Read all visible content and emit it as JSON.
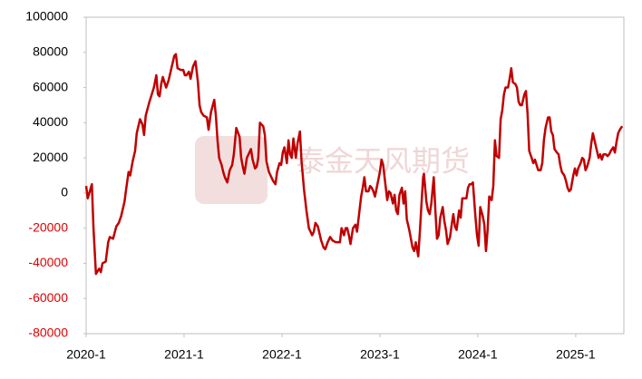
{
  "chart_data": {
    "type": "line",
    "watermark": "泰金天风期货",
    "color": "#c00000",
    "negative_tick_color": "#e00000",
    "x_unit": "months",
    "xlim": [
      0,
      65.9
    ],
    "xticks": [
      {
        "value": 0,
        "label": "2020-1"
      },
      {
        "value": 12,
        "label": "2021-1"
      },
      {
        "value": 24,
        "label": "2022-1"
      },
      {
        "value": 36,
        "label": "2023-1"
      },
      {
        "value": 48,
        "label": "2024-1"
      },
      {
        "value": 60,
        "label": "2025-1"
      }
    ],
    "ylim": [
      -80000,
      100000
    ],
    "yticks": [
      -80000,
      -60000,
      -40000,
      -20000,
      0,
      20000,
      40000,
      60000,
      80000,
      100000
    ],
    "x": [
      0,
      0.2,
      0.7,
      0.9,
      1.2,
      1.6,
      1.8,
      2,
      2.4,
      2.7,
      2.9,
      3.3,
      3.7,
      4,
      4.3,
      4.7,
      4.9,
      5.2,
      5.4,
      5.7,
      6,
      6.2,
      6.6,
      6.9,
      7.1,
      7.3,
      7.7,
      7.9,
      8.3,
      8.6,
      8.8,
      9,
      9.2,
      9.4,
      9.8,
      10.1,
      10.4,
      10.8,
      11,
      11.2,
      11.6,
      11.9,
      12.1,
      12.3,
      12.6,
      12.8,
      13.1,
      13.4,
      13.7,
      13.9,
      14.1,
      14.4,
      14.8,
      15,
      15.3,
      15.7,
      15.9,
      16.1,
      16.3,
      16.6,
      16.8,
      17,
      17.3,
      17.6,
      17.9,
      18.1,
      18.4,
      18.8,
      19,
      19.2,
      19.4,
      19.7,
      19.9,
      20.2,
      20.4,
      20.7,
      20.9,
      21.1,
      21.3,
      21.7,
      21.9,
      22.1,
      22.4,
      22.7,
      22.9,
      23.2,
      23.4,
      23.7,
      23.9,
      24.1,
      24.3,
      24.6,
      24.8,
      25,
      25.2,
      25.4,
      25.7,
      25.9,
      26.2,
      26.4,
      26.7,
      27,
      27.3,
      27.7,
      27.9,
      28.1,
      28.4,
      28.8,
      29.1,
      29.3,
      29.6,
      29.9,
      30.2,
      30.6,
      30.8,
      31.1,
      31.3,
      31.6,
      31.8,
      32,
      32.2,
      32.4,
      32.7,
      33,
      33.2,
      33.4,
      33.7,
      33.9,
      34.1,
      34.3,
      34.6,
      34.8,
      35,
      35.2,
      35.4,
      35.7,
      36,
      36.2,
      36.4,
      36.7,
      36.9,
      37.1,
      37.3,
      37.6,
      37.8,
      38,
      38.2,
      38.4,
      38.7,
      38.9,
      39.1,
      39.3,
      39.6,
      39.8,
      40,
      40.2,
      40.4,
      40.7,
      40.9,
      41.1,
      41.3,
      41.4,
      41.7,
      41.9,
      42.1,
      42.3,
      42.6,
      42.8,
      43,
      43.2,
      43.4,
      43.7,
      43.9,
      44.1,
      44.3,
      44.6,
      44.8,
      45,
      45.2,
      45.4,
      45.7,
      45.9,
      46.1,
      46.3,
      46.6,
      46.8,
      47,
      47.2,
      47.4,
      47.7,
      47.9,
      48.1,
      48.3,
      48.6,
      48.8,
      49,
      49.2,
      49.4,
      49.7,
      49.9,
      50.1,
      50.3,
      50.6,
      50.8,
      51,
      51.2,
      51.4,
      51.7,
      51.9,
      52.1,
      52.3,
      52.6,
      52.8,
      53,
      53.2,
      53.4,
      53.7,
      53.9,
      54.1,
      54.3,
      54.6,
      54.8,
      55,
      55.2,
      55.4,
      55.7,
      55.9,
      56.1,
      56.3,
      56.6,
      56.8,
      57,
      57.2,
      57.4,
      57.7,
      57.9,
      58.1,
      58.3,
      58.6,
      58.8,
      59,
      59.2,
      59.4,
      59.7,
      59.9,
      60.1,
      60.3,
      60.6,
      60.8,
      61,
      61.2,
      61.4,
      61.7,
      61.9,
      62.1,
      62.3,
      62.6,
      62.8,
      63,
      63.2,
      63.4,
      63.7,
      63.9,
      64.1,
      64.3,
      64.6,
      64.8,
      65,
      65.2,
      65.4,
      65.7
    ],
    "values": [
      4000,
      -3000,
      5000,
      -20000,
      -46000,
      -43000,
      -45000,
      -40000,
      -39000,
      -28000,
      -25000,
      -26000,
      -19000,
      -17000,
      -13000,
      -5000,
      2000,
      12000,
      10000,
      18000,
      24000,
      34000,
      42000,
      39000,
      33000,
      44000,
      51000,
      54000,
      60000,
      67000,
      56000,
      55000,
      62000,
      66000,
      60000,
      64000,
      70000,
      78000,
      79000,
      71000,
      70000,
      70000,
      67000,
      67000,
      69000,
      65000,
      72000,
      75000,
      63000,
      50000,
      46000,
      44000,
      43000,
      36000,
      46000,
      53000,
      44000,
      30000,
      20000,
      16000,
      12000,
      9000,
      6000,
      13000,
      16000,
      22000,
      37000,
      32000,
      20000,
      15000,
      11000,
      20000,
      22000,
      25000,
      19000,
      14000,
      15000,
      20000,
      40000,
      38000,
      33000,
      18000,
      12000,
      9000,
      7000,
      5000,
      12000,
      17000,
      16000,
      23000,
      26000,
      17000,
      30000,
      22000,
      20000,
      31000,
      20000,
      28000,
      35000,
      18000,
      2000,
      -10000,
      -20000,
      -24000,
      -22000,
      -17000,
      -19000,
      -27000,
      -31000,
      -32000,
      -28000,
      -25000,
      -27000,
      -28000,
      -28000,
      -28000,
      -20000,
      -24000,
      -20000,
      -20000,
      -24000,
      -29000,
      -20000,
      -18000,
      -22000,
      -14000,
      -2000,
      3000,
      9000,
      1000,
      1000,
      4000,
      3000,
      1000,
      -2000,
      5000,
      12000,
      19000,
      16000,
      4000,
      -4000,
      1000,
      0,
      -6000,
      -1000,
      -10000,
      -12000,
      -1000,
      3000,
      -6000,
      1000,
      -15000,
      -21000,
      -26000,
      -31000,
      -33000,
      -28000,
      -36000,
      -22000,
      -6000,
      9000,
      11000,
      -5000,
      -10000,
      -12000,
      -6000,
      9000,
      -10000,
      -26000,
      -24000,
      -14000,
      -8000,
      -16000,
      -21000,
      -29000,
      -25000,
      -18000,
      -12000,
      -19000,
      -21000,
      -10000,
      -14000,
      -3000,
      -3000,
      -3000,
      3000,
      5000,
      5000,
      6000,
      -13000,
      -24000,
      -30000,
      -8000,
      -13000,
      -18000,
      -33000,
      -21000,
      -2000,
      -4000,
      4000,
      30000,
      21000,
      20000,
      42000,
      47000,
      56000,
      60000,
      60000,
      65000,
      71000,
      63000,
      62000,
      60000,
      52000,
      50000,
      50000,
      56000,
      58000,
      45000,
      24000,
      20000,
      17000,
      19000,
      16000,
      13000,
      13000,
      17000,
      30000,
      37000,
      43000,
      43000,
      35000,
      33000,
      25000,
      23000,
      22000,
      16000,
      12000,
      10000,
      7000,
      3000,
      1000,
      2000,
      10000,
      14000,
      10000,
      14000,
      17000,
      20000,
      19000,
      13000,
      15000,
      20000,
      28000,
      34000,
      30000,
      24000,
      20000,
      22000,
      19000,
      22000,
      22000,
      21000,
      22000,
      24000,
      26000,
      23000,
      29000,
      34000,
      36000,
      38000
    ]
  }
}
